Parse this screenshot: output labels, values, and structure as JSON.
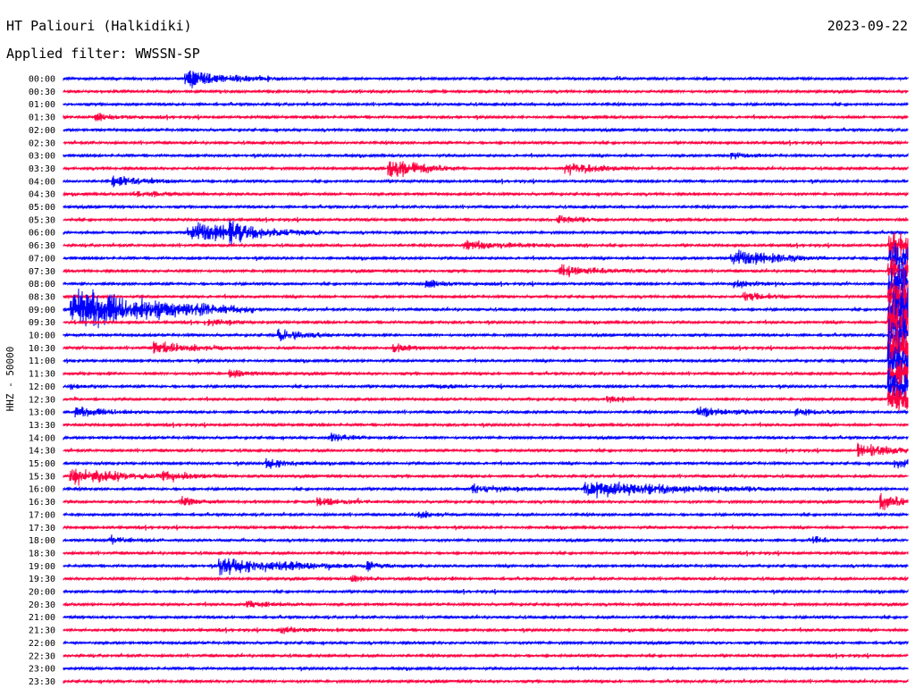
{
  "header": {
    "station": "HT Paliouri (Halkidiki)",
    "date": "2023-09-22",
    "filter_text": "Applied filter: WWSSN-SP"
  },
  "chart_data": {
    "type": "line",
    "title": "HT Paliouri (Halkidiki)",
    "ylabel": "HHZ - 50000",
    "rows": [
      "00:00",
      "00:30",
      "01:00",
      "01:30",
      "02:00",
      "02:30",
      "03:00",
      "03:30",
      "04:00",
      "04:30",
      "05:00",
      "05:30",
      "06:00",
      "06:30",
      "07:00",
      "07:30",
      "08:00",
      "08:30",
      "09:00",
      "09:30",
      "10:00",
      "10:30",
      "11:00",
      "11:30",
      "12:00",
      "12:30",
      "13:00",
      "13:30",
      "14:00",
      "14:30",
      "15:00",
      "15:30",
      "16:00",
      "16:30",
      "17:00",
      "17:30",
      "18:00",
      "18:30",
      "19:00",
      "19:30",
      "20:00",
      "20:30",
      "21:00",
      "21:30",
      "22:00",
      "22:30",
      "23:00",
      "23:30"
    ],
    "colors": {
      "even": "#0000ff",
      "odd": "#ff0040"
    },
    "x_range_minutes": [
      0,
      30
    ],
    "grid": false,
    "events": [
      {
        "row": 0,
        "minute": 4.3,
        "amp": 12,
        "dur": 1.6
      },
      {
        "row": 3,
        "minute": 1.1,
        "amp": 6,
        "dur": 0.6
      },
      {
        "row": 6,
        "minute": 23.7,
        "amp": 5,
        "dur": 0.6
      },
      {
        "row": 7,
        "minute": 11.5,
        "amp": 14,
        "dur": 1.2
      },
      {
        "row": 7,
        "minute": 17.8,
        "amp": 10,
        "dur": 1.2
      },
      {
        "row": 8,
        "minute": 1.7,
        "amp": 7,
        "dur": 1.2
      },
      {
        "row": 9,
        "minute": 2.5,
        "amp": 5,
        "dur": 0.9
      },
      {
        "row": 11,
        "minute": 17.5,
        "amp": 6,
        "dur": 0.9
      },
      {
        "row": 12,
        "minute": 4.4,
        "amp": 16,
        "dur": 2.2
      },
      {
        "row": 12,
        "minute": 5.9,
        "amp": 10,
        "dur": 0.8
      },
      {
        "row": 13,
        "minute": 14.2,
        "amp": 6,
        "dur": 2.0
      },
      {
        "row": 14,
        "minute": 23.7,
        "amp": 13,
        "dur": 1.6
      },
      {
        "row": 15,
        "minute": 17.6,
        "amp": 8,
        "dur": 1.5
      },
      {
        "row": 16,
        "minute": 12.8,
        "amp": 7,
        "dur": 0.6
      },
      {
        "row": 16,
        "minute": 23.8,
        "amp": 6,
        "dur": 0.8
      },
      {
        "row": 17,
        "minute": 24.1,
        "amp": 7,
        "dur": 0.8
      },
      {
        "row": 18,
        "minute": 0.2,
        "amp": 32,
        "dur": 3.0
      },
      {
        "row": 19,
        "minute": 5.0,
        "amp": 5,
        "dur": 0.8
      },
      {
        "row": 20,
        "minute": 7.6,
        "amp": 8,
        "dur": 1.0
      },
      {
        "row": 21,
        "minute": 3.2,
        "amp": 9,
        "dur": 1.5
      },
      {
        "row": 21,
        "minute": 11.7,
        "amp": 6,
        "dur": 0.8
      },
      {
        "row": 23,
        "minute": 5.9,
        "amp": 5,
        "dur": 0.8
      },
      {
        "row": 24,
        "minute": 0.2,
        "amp": 5,
        "dur": 0.3
      },
      {
        "row": 24,
        "minute": 13.0,
        "amp": 4,
        "dur": 0.8
      },
      {
        "row": 25,
        "minute": 19.3,
        "amp": 5,
        "dur": 0.6
      },
      {
        "row": 26,
        "minute": 0.4,
        "amp": 7,
        "dur": 1.2
      },
      {
        "row": 26,
        "minute": 22.5,
        "amp": 7,
        "dur": 1.4
      },
      {
        "row": 26,
        "minute": 26.0,
        "amp": 6,
        "dur": 0.8
      },
      {
        "row": 28,
        "minute": 9.5,
        "amp": 7,
        "dur": 0.6
      },
      {
        "row": 29,
        "minute": 28.2,
        "amp": 9,
        "dur": 1.5
      },
      {
        "row": 30,
        "minute": 7.2,
        "amp": 8,
        "dur": 0.8
      },
      {
        "row": 30,
        "minute": 29.5,
        "amp": 7,
        "dur": 1.0
      },
      {
        "row": 31,
        "minute": 0.2,
        "amp": 12,
        "dur": 2.0
      },
      {
        "row": 31,
        "minute": 3.5,
        "amp": 6,
        "dur": 1.2
      },
      {
        "row": 32,
        "minute": 14.5,
        "amp": 7,
        "dur": 1.0
      },
      {
        "row": 32,
        "minute": 18.5,
        "amp": 11,
        "dur": 3.5
      },
      {
        "row": 33,
        "minute": 4.1,
        "amp": 8,
        "dur": 0.6
      },
      {
        "row": 33,
        "minute": 9.0,
        "amp": 5,
        "dur": 1.2
      },
      {
        "row": 33,
        "minute": 29.0,
        "amp": 10,
        "dur": 1.0
      },
      {
        "row": 34,
        "minute": 12.6,
        "amp": 6,
        "dur": 0.5
      },
      {
        "row": 36,
        "minute": 1.6,
        "amp": 5,
        "dur": 0.9
      },
      {
        "row": 36,
        "minute": 26.6,
        "amp": 6,
        "dur": 0.5
      },
      {
        "row": 38,
        "minute": 5.5,
        "amp": 12,
        "dur": 2.5
      },
      {
        "row": 38,
        "minute": 10.7,
        "amp": 5,
        "dur": 0.8
      },
      {
        "row": 39,
        "minute": 10.2,
        "amp": 5,
        "dur": 0.6
      },
      {
        "row": 41,
        "minute": 6.5,
        "amp": 5,
        "dur": 1.0
      },
      {
        "row": 43,
        "minute": 7.7,
        "amp": 5,
        "dur": 0.8
      }
    ],
    "big_event": {
      "start_row": 13,
      "end_row": 25,
      "minute": 29.6,
      "amp": 34
    }
  }
}
